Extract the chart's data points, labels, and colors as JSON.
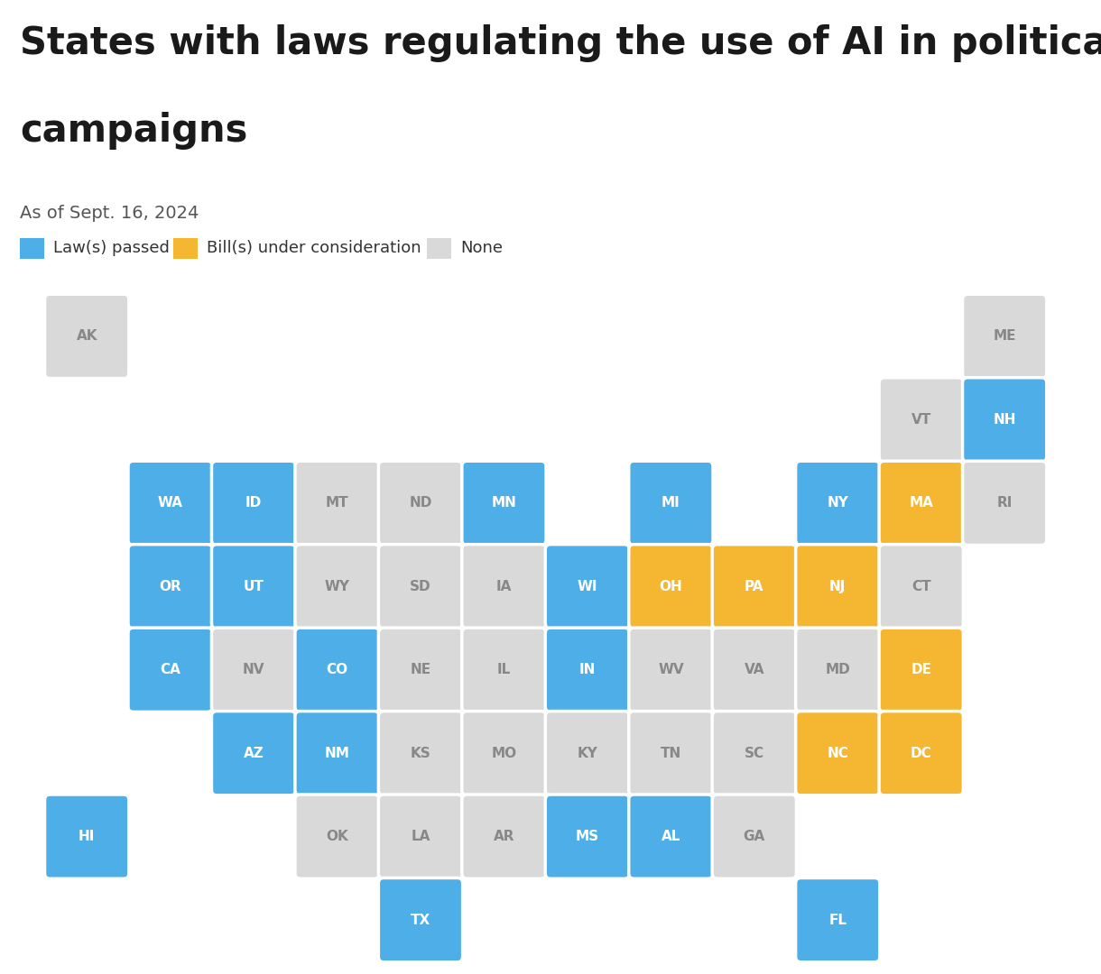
{
  "title_line1": "States with laws regulating the use of AI in political",
  "title_line2": "campaigns",
  "subtitle": "As of Sept. 16, 2024",
  "legend": [
    {
      "label": "Law(s) passed",
      "color": "#4daee8"
    },
    {
      "label": "Bill(s) under consideration",
      "color": "#f5b731"
    },
    {
      "label": "None",
      "color": "#d9d9d9"
    }
  ],
  "background_color": "#ffffff",
  "colors": {
    "passed": "#4daee8",
    "consideration": "#f5b731",
    "none": "#d9d9d9"
  },
  "states": [
    {
      "abbr": "AK",
      "col": 0,
      "row": 0,
      "status": "none"
    },
    {
      "abbr": "ME",
      "col": 11,
      "row": 0,
      "status": "none"
    },
    {
      "abbr": "VT",
      "col": 10,
      "row": 1,
      "status": "none"
    },
    {
      "abbr": "NH",
      "col": 11,
      "row": 1,
      "status": "passed"
    },
    {
      "abbr": "WA",
      "col": 1,
      "row": 2,
      "status": "passed"
    },
    {
      "abbr": "ID",
      "col": 2,
      "row": 2,
      "status": "passed"
    },
    {
      "abbr": "MT",
      "col": 3,
      "row": 2,
      "status": "none"
    },
    {
      "abbr": "ND",
      "col": 4,
      "row": 2,
      "status": "none"
    },
    {
      "abbr": "MN",
      "col": 5,
      "row": 2,
      "status": "passed"
    },
    {
      "abbr": "MI",
      "col": 7,
      "row": 2,
      "status": "passed"
    },
    {
      "abbr": "NY",
      "col": 9,
      "row": 2,
      "status": "passed"
    },
    {
      "abbr": "MA",
      "col": 10,
      "row": 2,
      "status": "consideration"
    },
    {
      "abbr": "RI",
      "col": 11,
      "row": 2,
      "status": "none"
    },
    {
      "abbr": "OR",
      "col": 1,
      "row": 3,
      "status": "passed"
    },
    {
      "abbr": "UT",
      "col": 2,
      "row": 3,
      "status": "passed"
    },
    {
      "abbr": "WY",
      "col": 3,
      "row": 3,
      "status": "none"
    },
    {
      "abbr": "SD",
      "col": 4,
      "row": 3,
      "status": "none"
    },
    {
      "abbr": "IA",
      "col": 5,
      "row": 3,
      "status": "none"
    },
    {
      "abbr": "WI",
      "col": 6,
      "row": 3,
      "status": "passed"
    },
    {
      "abbr": "OH",
      "col": 7,
      "row": 3,
      "status": "consideration"
    },
    {
      "abbr": "PA",
      "col": 8,
      "row": 3,
      "status": "consideration"
    },
    {
      "abbr": "NJ",
      "col": 9,
      "row": 3,
      "status": "consideration"
    },
    {
      "abbr": "CT",
      "col": 10,
      "row": 3,
      "status": "none"
    },
    {
      "abbr": "CA",
      "col": 1,
      "row": 4,
      "status": "passed"
    },
    {
      "abbr": "NV",
      "col": 2,
      "row": 4,
      "status": "none"
    },
    {
      "abbr": "CO",
      "col": 3,
      "row": 4,
      "status": "passed"
    },
    {
      "abbr": "NE",
      "col": 4,
      "row": 4,
      "status": "none"
    },
    {
      "abbr": "IL",
      "col": 5,
      "row": 4,
      "status": "none"
    },
    {
      "abbr": "IN",
      "col": 6,
      "row": 4,
      "status": "passed"
    },
    {
      "abbr": "WV",
      "col": 7,
      "row": 4,
      "status": "none"
    },
    {
      "abbr": "VA",
      "col": 8,
      "row": 4,
      "status": "none"
    },
    {
      "abbr": "MD",
      "col": 9,
      "row": 4,
      "status": "none"
    },
    {
      "abbr": "DE",
      "col": 10,
      "row": 4,
      "status": "consideration"
    },
    {
      "abbr": "AZ",
      "col": 2,
      "row": 5,
      "status": "passed"
    },
    {
      "abbr": "NM",
      "col": 3,
      "row": 5,
      "status": "passed"
    },
    {
      "abbr": "KS",
      "col": 4,
      "row": 5,
      "status": "none"
    },
    {
      "abbr": "MO",
      "col": 5,
      "row": 5,
      "status": "none"
    },
    {
      "abbr": "KY",
      "col": 6,
      "row": 5,
      "status": "none"
    },
    {
      "abbr": "TN",
      "col": 7,
      "row": 5,
      "status": "none"
    },
    {
      "abbr": "SC",
      "col": 8,
      "row": 5,
      "status": "none"
    },
    {
      "abbr": "NC",
      "col": 9,
      "row": 5,
      "status": "consideration"
    },
    {
      "abbr": "DC",
      "col": 10,
      "row": 5,
      "status": "consideration"
    },
    {
      "abbr": "HI",
      "col": 0,
      "row": 6,
      "status": "passed"
    },
    {
      "abbr": "OK",
      "col": 3,
      "row": 6,
      "status": "none"
    },
    {
      "abbr": "LA",
      "col": 4,
      "row": 6,
      "status": "none"
    },
    {
      "abbr": "AR",
      "col": 5,
      "row": 6,
      "status": "none"
    },
    {
      "abbr": "MS",
      "col": 6,
      "row": 6,
      "status": "passed"
    },
    {
      "abbr": "AL",
      "col": 7,
      "row": 6,
      "status": "passed"
    },
    {
      "abbr": "GA",
      "col": 8,
      "row": 6,
      "status": "none"
    },
    {
      "abbr": "TX",
      "col": 4,
      "row": 7,
      "status": "passed"
    },
    {
      "abbr": "FL",
      "col": 9,
      "row": 7,
      "status": "passed"
    }
  ]
}
